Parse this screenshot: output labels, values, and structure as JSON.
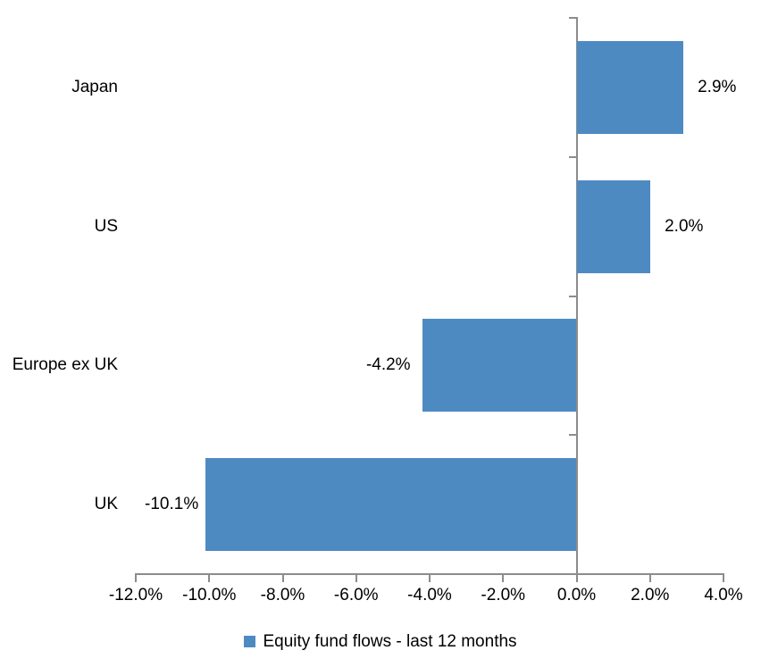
{
  "chart_data": {
    "type": "bar",
    "orientation": "horizontal",
    "title": "",
    "xlabel": "",
    "ylabel": "",
    "categories": [
      "Japan",
      "US",
      "Europe ex UK",
      "UK"
    ],
    "series": [
      {
        "name": "Equity fund flows - last 12 months",
        "values": [
          2.9,
          2.0,
          -4.2,
          -10.1
        ],
        "labels": [
          "2.9%",
          "2.0%",
          "-4.2%",
          "-10.1%"
        ]
      }
    ],
    "xlim": [
      -12,
      4
    ],
    "x_ticks": [
      -12,
      -10,
      -8,
      -6,
      -4,
      -2,
      0,
      2,
      4
    ],
    "x_tick_labels": [
      "-12.0%",
      "-10.0%",
      "-8.0%",
      "-6.0%",
      "-4.0%",
      "-2.0%",
      "0.0%",
      "2.0%",
      "4.0%"
    ],
    "grid": false,
    "legend": {
      "position": "bottom",
      "label": "Equity fund flows - last 12 months"
    },
    "colors": {
      "bar": "#4E8AC2",
      "axis": "#8C8C8C",
      "text": "#000000",
      "background": "#FFFFFF"
    }
  }
}
